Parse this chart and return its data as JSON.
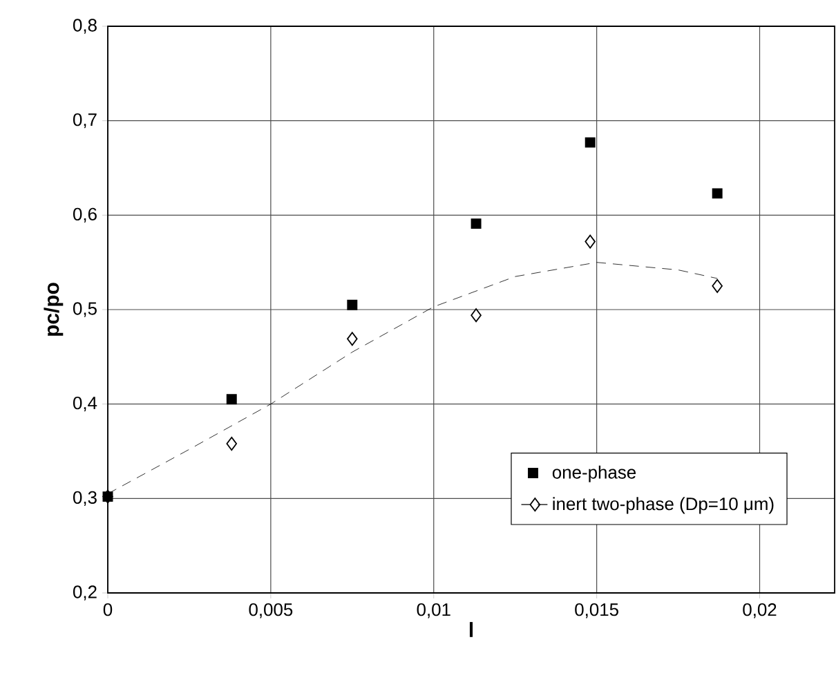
{
  "chart_data": {
    "type": "scatter",
    "xlabel": "l",
    "ylabel": "pc/po",
    "xlim": [
      0,
      0.0223
    ],
    "ylim": [
      0.2,
      0.8
    ],
    "xticks": [
      0,
      {
        "value": 0.005,
        "label": "0,005"
      },
      {
        "value": 0.01,
        "label": "0,01"
      },
      {
        "value": 0.015,
        "label": "0,015"
      },
      {
        "value": 0.02,
        "label": "0,02"
      }
    ],
    "yticks": [
      {
        "value": 0.2,
        "label": "0,2"
      },
      {
        "value": 0.3,
        "label": "0,3"
      },
      {
        "value": 0.4,
        "label": "0,4"
      },
      {
        "value": 0.5,
        "label": "0,5"
      },
      {
        "value": 0.6,
        "label": "0,6"
      },
      {
        "value": 0.7,
        "label": "0,7"
      },
      {
        "value": 0.8,
        "label": "0,8"
      }
    ],
    "grid": true,
    "legend": "bottom right",
    "series": [
      {
        "name": "one-phase",
        "type": "scatter",
        "marker": "square",
        "color": "#000000",
        "x": [
          0,
          0.0038,
          0.0075,
          0.0113,
          0.0148,
          0.0187
        ],
        "values": [
          0.302,
          0.405,
          0.505,
          0.591,
          0.677,
          0.623
        ]
      },
      {
        "name": "inert two-phase  (Dp=10 μm)",
        "type": "scatter",
        "marker": "diamond",
        "color": "#000000",
        "x": [
          0,
          0.0038,
          0.0075,
          0.0113,
          0.0148,
          0.0187
        ],
        "values": [
          0.302,
          0.358,
          0.469,
          0.494,
          0.572,
          0.525
        ]
      },
      {
        "type": "line",
        "line_style": "dashed",
        "marker": "none",
        "color": "#000000",
        "x": [
          0,
          0.0025,
          0.005,
          0.0075,
          0.01,
          0.0125,
          0.015,
          0.0175,
          0.0187
        ],
        "values": [
          0.305,
          0.352,
          0.4,
          0.455,
          0.503,
          0.535,
          0.55,
          0.542,
          0.533
        ]
      }
    ]
  }
}
